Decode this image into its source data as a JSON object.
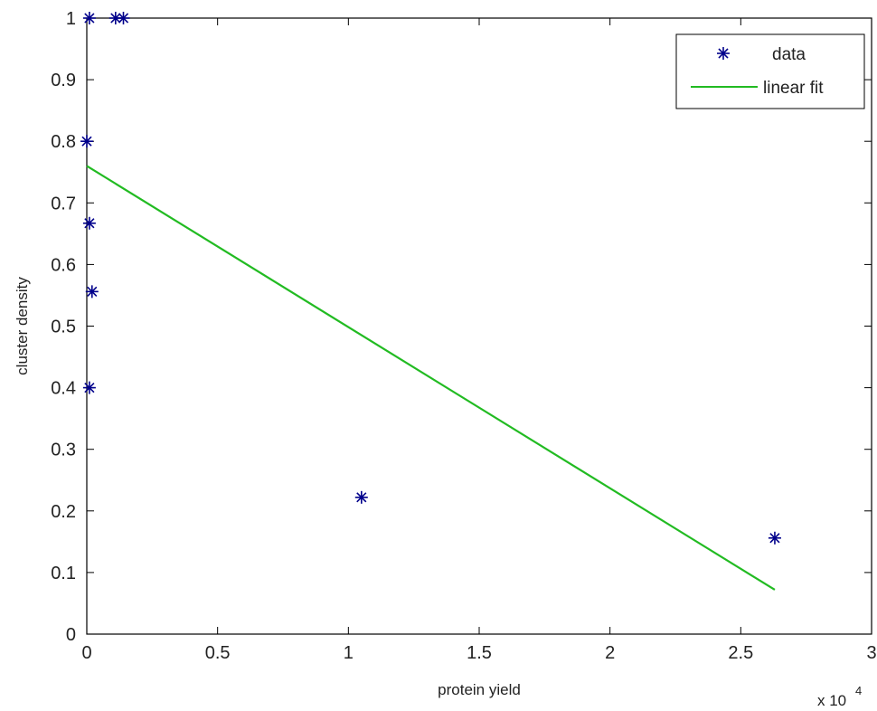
{
  "chart_data": {
    "type": "scatter",
    "xlabel": "protein yield",
    "ylabel": "cluster density",
    "x_multiplier_label": {
      "base": "x 10",
      "exponent": "4"
    },
    "xlim": [
      0,
      3
    ],
    "ylim": [
      0,
      1
    ],
    "x_ticks": [
      {
        "value": 0,
        "label": "0"
      },
      {
        "value": 0.5,
        "label": "0.5"
      },
      {
        "value": 1,
        "label": "1"
      },
      {
        "value": 1.5,
        "label": "1.5"
      },
      {
        "value": 2,
        "label": "2"
      },
      {
        "value": 2.5,
        "label": "2.5"
      },
      {
        "value": 3,
        "label": "3"
      }
    ],
    "y_ticks": [
      {
        "value": 0,
        "label": "0"
      },
      {
        "value": 0.1,
        "label": "0.1"
      },
      {
        "value": 0.2,
        "label": "0.2"
      },
      {
        "value": 0.3,
        "label": "0.3"
      },
      {
        "value": 0.4,
        "label": "0.4"
      },
      {
        "value": 0.5,
        "label": "0.5"
      },
      {
        "value": 0.6,
        "label": "0.6"
      },
      {
        "value": 0.7,
        "label": "0.7"
      },
      {
        "value": 0.8,
        "label": "0.8"
      },
      {
        "value": 0.9,
        "label": "0.9"
      },
      {
        "value": 1,
        "label": "1"
      }
    ],
    "series": [
      {
        "name": "data",
        "marker": "asterisk",
        "color": "#00008b",
        "points": [
          {
            "x": 0.01,
            "y": 1.0
          },
          {
            "x": 0.11,
            "y": 1.0
          },
          {
            "x": 0.14,
            "y": 1.0
          },
          {
            "x": 0.0,
            "y": 0.8
          },
          {
            "x": 0.01,
            "y": 0.667
          },
          {
            "x": 0.02,
            "y": 0.556
          },
          {
            "x": 0.01,
            "y": 0.4
          },
          {
            "x": 1.05,
            "y": 0.222
          },
          {
            "x": 2.63,
            "y": 0.156
          }
        ]
      },
      {
        "name": "linear fit",
        "type": "line",
        "color": "#22bb22",
        "points": [
          {
            "x": 0.0,
            "y": 0.76
          },
          {
            "x": 2.63,
            "y": 0.072
          }
        ]
      }
    ],
    "legend": {
      "position": "top-right",
      "entries": [
        "data",
        "linear fit"
      ]
    },
    "grid": false
  }
}
